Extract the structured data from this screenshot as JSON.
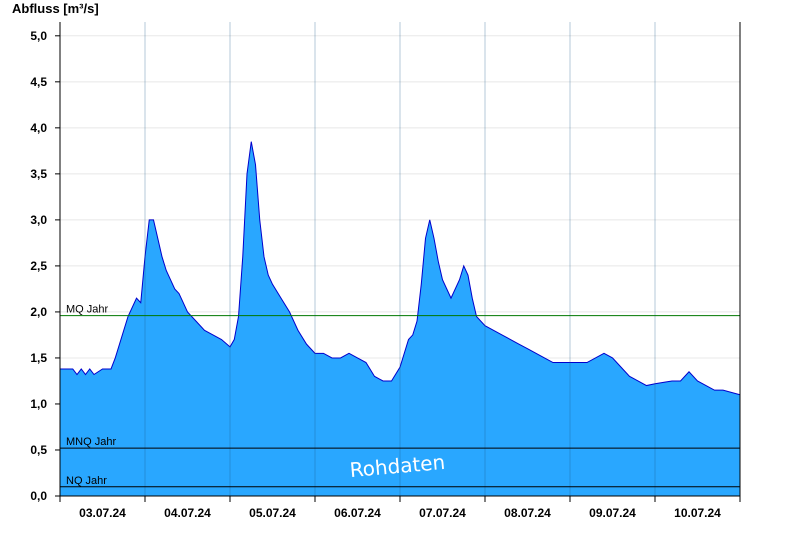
{
  "chart_data": {
    "type": "area",
    "ylabel": "Abfluss [m³/s]",
    "ylim": [
      0,
      5.15
    ],
    "yticks": [
      "0,0",
      "0,5",
      "1,0",
      "1,5",
      "2,0",
      "2,5",
      "3,0",
      "3,5",
      "4,0",
      "4,5",
      "5,0"
    ],
    "ytick_values": [
      0,
      0.5,
      1.0,
      1.5,
      2.0,
      2.5,
      3.0,
      3.5,
      4.0,
      4.5,
      5.0
    ],
    "xlim": [
      0,
      8
    ],
    "xticks": [
      "03.07.24",
      "04.07.24",
      "05.07.24",
      "06.07.24",
      "07.07.24",
      "08.07.24",
      "09.07.24",
      "10.07.24"
    ],
    "grid": true,
    "colors": {
      "fill": "#29a7ff",
      "line": "#0000cc",
      "mq": "#007700",
      "ref": "#000000"
    },
    "reference_lines": [
      {
        "label": "MQ Jahr",
        "value": 1.96
      },
      {
        "label": "MNQ Jahr",
        "value": 0.52
      },
      {
        "label": "NQ Jahr",
        "value": 0.1
      }
    ],
    "watermark": "Rohdaten",
    "series": [
      {
        "x": [
          0,
          0.15,
          0.2,
          0.25,
          0.3,
          0.35,
          0.4,
          0.5,
          0.6,
          0.65,
          0.7,
          0.8,
          0.9,
          0.95,
          1.0,
          1.05,
          1.1,
          1.15,
          1.2,
          1.25,
          1.3,
          1.35,
          1.4,
          1.45,
          1.5,
          1.6,
          1.7,
          1.8,
          1.9,
          2.0,
          2.05,
          2.1,
          2.15,
          2.2,
          2.25,
          2.3,
          2.35,
          2.4,
          2.45,
          2.5,
          2.6,
          2.7,
          2.8,
          2.9,
          3.0,
          3.1,
          3.2,
          3.3,
          3.4,
          3.5,
          3.6,
          3.7,
          3.8,
          3.9,
          4.0,
          4.05,
          4.1,
          4.15,
          4.2,
          4.25,
          4.3,
          4.35,
          4.4,
          4.45,
          4.5,
          4.6,
          4.7,
          4.75,
          4.8,
          4.85,
          4.9,
          5.0,
          5.1,
          5.2,
          5.3,
          5.4,
          5.5,
          5.6,
          5.7,
          5.8,
          5.9,
          6.0,
          6.2,
          6.4,
          6.5,
          6.6,
          6.7,
          6.8,
          6.9,
          7.0,
          7.2,
          7.3,
          7.4,
          7.5,
          7.6,
          7.7,
          7.8,
          8.0
        ],
        "values": [
          1.38,
          1.38,
          1.32,
          1.38,
          1.32,
          1.38,
          1.32,
          1.38,
          1.38,
          1.5,
          1.65,
          1.95,
          2.15,
          2.1,
          2.6,
          3.0,
          3.0,
          2.8,
          2.6,
          2.45,
          2.35,
          2.25,
          2.2,
          2.1,
          2.0,
          1.9,
          1.8,
          1.75,
          1.7,
          1.62,
          1.7,
          1.95,
          2.6,
          3.5,
          3.85,
          3.6,
          3.0,
          2.6,
          2.4,
          2.3,
          2.15,
          2.0,
          1.8,
          1.65,
          1.55,
          1.55,
          1.5,
          1.5,
          1.55,
          1.5,
          1.45,
          1.3,
          1.25,
          1.25,
          1.4,
          1.55,
          1.7,
          1.75,
          1.9,
          2.3,
          2.8,
          3.0,
          2.8,
          2.55,
          2.35,
          2.15,
          2.35,
          2.5,
          2.4,
          2.15,
          1.95,
          1.85,
          1.8,
          1.75,
          1.7,
          1.65,
          1.6,
          1.55,
          1.5,
          1.45,
          1.45,
          1.45,
          1.45,
          1.55,
          1.5,
          1.4,
          1.3,
          1.25,
          1.2,
          1.22,
          1.25,
          1.25,
          1.35,
          1.25,
          1.2,
          1.15,
          1.15,
          1.1
        ]
      }
    ]
  }
}
